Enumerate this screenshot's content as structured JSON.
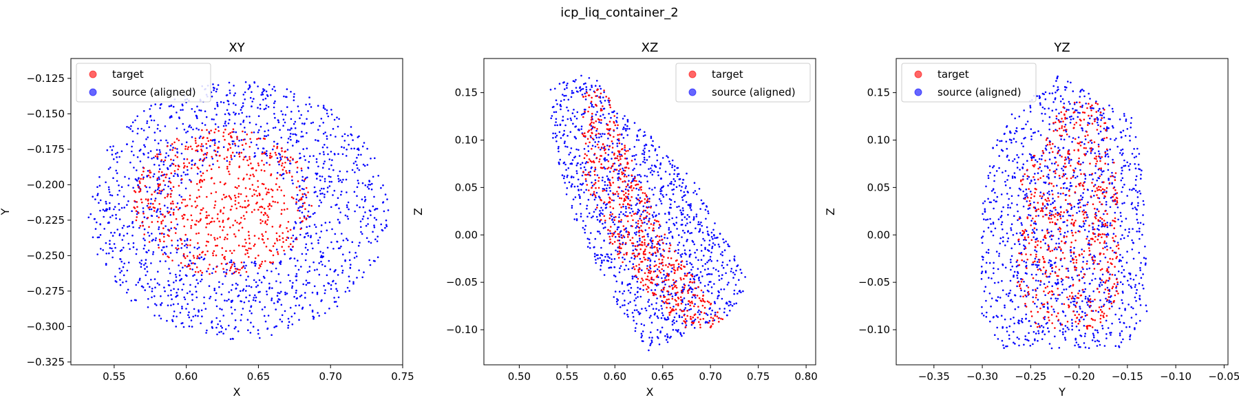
{
  "figure_title": "icp_liq_container_2",
  "colors": {
    "target": "#ff0000",
    "source": "#0000ff",
    "axes": "#000000"
  },
  "chart_data": [
    {
      "type": "scatter",
      "title": "XY",
      "xlabel": "X",
      "ylabel": "Y",
      "xlim": [
        0.52,
        0.75
      ],
      "ylim": [
        -0.327,
        -0.111
      ],
      "xticks": [
        0.55,
        0.6,
        0.65,
        0.7,
        0.75
      ],
      "xtick_labels": [
        "0.55",
        "0.60",
        "0.65",
        "0.70",
        "0.75"
      ],
      "yticks": [
        -0.325,
        -0.3,
        -0.275,
        -0.25,
        -0.225,
        -0.2,
        -0.175,
        -0.15,
        -0.125
      ],
      "ytick_labels": [
        "−0.325",
        "−0.300",
        "−0.275",
        "−0.250",
        "−0.225",
        "−0.200",
        "−0.175",
        "−0.150",
        "−0.125"
      ],
      "legend": {
        "position": "upper-left",
        "entries": [
          "target",
          "source (aligned)"
        ]
      },
      "series": [
        {
          "name": "source (aligned)",
          "color": "#0000ff",
          "shape": "ellipse",
          "center": [
            0.636,
            -0.218
          ],
          "radius": [
            0.104,
            0.091
          ],
          "count": 1500
        },
        {
          "name": "target",
          "color": "#ff0000",
          "shape": "ellipse",
          "center": [
            0.625,
            -0.212
          ],
          "radius": [
            0.062,
            0.052
          ],
          "count": 700
        }
      ]
    },
    {
      "type": "scatter",
      "title": "XZ",
      "xlabel": "X",
      "ylabel": "Z",
      "xlim": [
        0.463,
        0.81
      ],
      "ylim": [
        -0.137,
        0.186
      ],
      "xticks": [
        0.5,
        0.55,
        0.6,
        0.65,
        0.7,
        0.75,
        0.8
      ],
      "xtick_labels": [
        "0.50",
        "0.55",
        "0.60",
        "0.65",
        "0.70",
        "0.75",
        "0.80"
      ],
      "yticks": [
        -0.1,
        -0.05,
        0.0,
        0.05,
        0.1,
        0.15
      ],
      "ytick_labels": [
        "−0.10",
        "−0.05",
        "0.00",
        "0.05",
        "0.10",
        "0.15"
      ],
      "legend": {
        "position": "upper-right",
        "entries": [
          "target",
          "source (aligned)"
        ]
      },
      "series": [
        {
          "name": "source (aligned)",
          "color": "#0000ff",
          "shape": "polygon",
          "vertices": [
            [
              0.53,
              0.155
            ],
            [
              0.575,
              0.172
            ],
            [
              0.6,
              0.135
            ],
            [
              0.645,
              0.1
            ],
            [
              0.688,
              0.05
            ],
            [
              0.74,
              -0.05
            ],
            [
              0.72,
              -0.085
            ],
            [
              0.635,
              -0.122
            ],
            [
              0.605,
              -0.08
            ],
            [
              0.555,
              0.02
            ],
            [
              0.535,
              0.1
            ]
          ],
          "count": 1300
        },
        {
          "name": "target",
          "color": "#ff0000",
          "shape": "polygon",
          "vertices": [
            [
              0.565,
              0.15
            ],
            [
              0.59,
              0.155
            ],
            [
              0.625,
              0.06
            ],
            [
              0.665,
              -0.02
            ],
            [
              0.715,
              -0.092
            ],
            [
              0.68,
              -0.105
            ],
            [
              0.645,
              -0.075
            ],
            [
              0.6,
              -0.02
            ],
            [
              0.567,
              0.06
            ]
          ],
          "count": 650
        }
      ]
    },
    {
      "type": "scatter",
      "title": "YZ",
      "xlabel": "Y",
      "ylabel": "Z",
      "xlim": [
        -0.389,
        -0.046
      ],
      "ylim": [
        -0.137,
        0.186
      ],
      "xticks": [
        -0.35,
        -0.3,
        -0.25,
        -0.2,
        -0.15,
        -0.1,
        -0.05
      ],
      "xtick_labels": [
        "−0.35",
        "−0.30",
        "−0.25",
        "−0.20",
        "−0.15",
        "−0.10",
        "−0.05"
      ],
      "yticks": [
        -0.1,
        -0.05,
        0.0,
        0.05,
        0.1,
        0.15
      ],
      "ytick_labels": [
        "−0.10",
        "−0.05",
        "0.00",
        "0.05",
        "0.10",
        "0.15"
      ],
      "legend": {
        "position": "upper-left",
        "entries": [
          "target",
          "source (aligned)"
        ]
      },
      "series": [
        {
          "name": "source (aligned)",
          "color": "#0000ff",
          "shape": "polygon",
          "vertices": [
            [
              -0.27,
              0.13
            ],
            [
              -0.22,
              0.17
            ],
            [
              -0.19,
              0.15
            ],
            [
              -0.145,
              0.125
            ],
            [
              -0.135,
              0.08
            ],
            [
              -0.128,
              -0.08
            ],
            [
              -0.15,
              -0.12
            ],
            [
              -0.28,
              -0.12
            ],
            [
              -0.302,
              -0.08
            ],
            [
              -0.3,
              0.04
            ],
            [
              -0.29,
              0.09
            ]
          ],
          "count": 1300
        },
        {
          "name": "target",
          "color": "#ff0000",
          "shape": "polygon",
          "vertices": [
            [
              -0.26,
              0.06
            ],
            [
              -0.215,
              0.14
            ],
            [
              -0.175,
              0.14
            ],
            [
              -0.16,
              0.06
            ],
            [
              -0.158,
              -0.06
            ],
            [
              -0.175,
              -0.1
            ],
            [
              -0.245,
              -0.1
            ],
            [
              -0.265,
              -0.05
            ]
          ],
          "count": 650
        }
      ]
    }
  ]
}
